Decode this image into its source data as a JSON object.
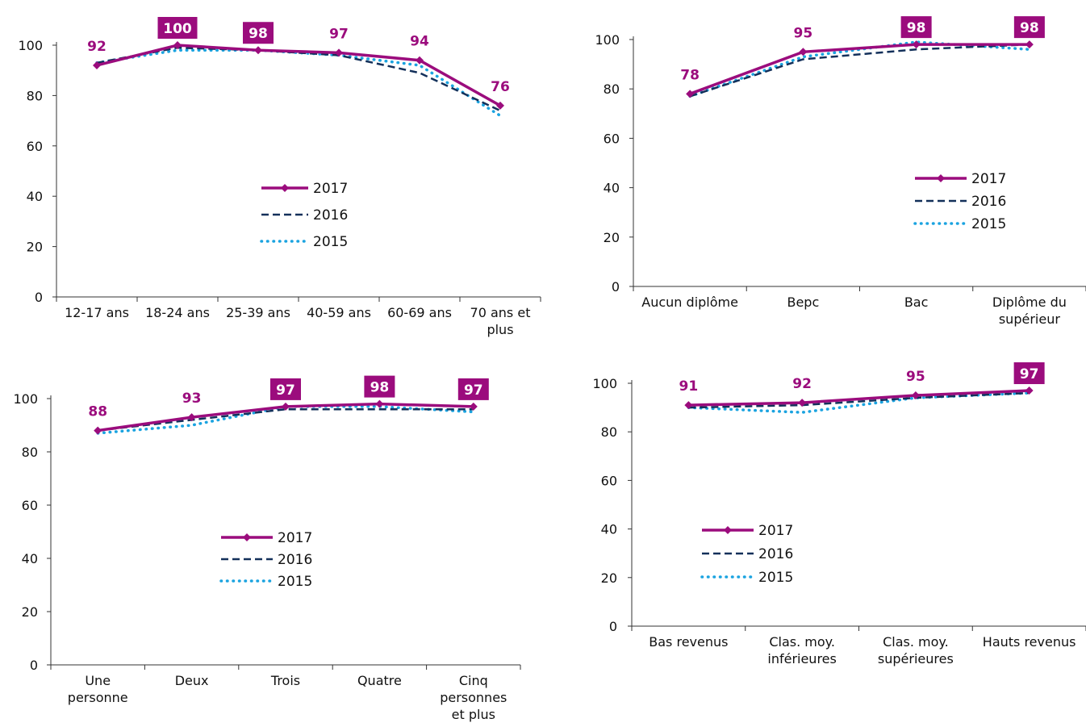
{
  "colors": {
    "s2017": "#9b0c7d",
    "s2016": "#13305a",
    "s2015": "#1aa3e0",
    "label_box": "#9b0c7d",
    "label_box_text": "#ffffff"
  },
  "legend_labels": [
    "2017",
    "2016",
    "2015"
  ],
  "chart_data": [
    {
      "type": "line",
      "categories": [
        [
          "12-17 ans"
        ],
        [
          "18-24 ans"
        ],
        [
          "25-39 ans"
        ],
        [
          "40-59 ans"
        ],
        [
          "60-69 ans"
        ],
        [
          "70 ans et",
          "plus"
        ]
      ],
      "ylim": [
        0,
        100
      ],
      "yticks": [
        0,
        20,
        40,
        60,
        80,
        100
      ],
      "series": [
        {
          "name": "2017",
          "values": [
            92,
            100,
            98,
            97,
            94,
            76
          ]
        },
        {
          "name": "2016",
          "values": [
            93,
            99,
            98,
            96,
            89,
            74
          ]
        },
        {
          "name": "2015",
          "values": [
            93,
            98,
            98,
            96,
            92,
            72
          ]
        }
      ],
      "data_labels": [
        "92",
        "100",
        "98",
        "97",
        "94",
        "76"
      ],
      "boxed": [
        false,
        true,
        true,
        false,
        false,
        false
      ],
      "legend": "center-right"
    },
    {
      "type": "line",
      "categories": [
        [
          "Aucun diplôme"
        ],
        [
          "Bepc"
        ],
        [
          "Bac"
        ],
        [
          "Diplôme du",
          "supérieur"
        ]
      ],
      "ylim": [
        0,
        100
      ],
      "yticks": [
        0,
        20,
        40,
        60,
        80,
        100
      ],
      "series": [
        {
          "name": "2017",
          "values": [
            78,
            95,
            98,
            98
          ]
        },
        {
          "name": "2016",
          "values": [
            77,
            92,
            96,
            98
          ]
        },
        {
          "name": "2015",
          "values": [
            77,
            93,
            99,
            96
          ]
        }
      ],
      "data_labels": [
        "78",
        "95",
        "98",
        "98"
      ],
      "boxed": [
        false,
        false,
        true,
        true
      ],
      "legend": "center-right"
    },
    {
      "type": "line",
      "categories": [
        [
          "Une",
          "personne"
        ],
        [
          "Deux"
        ],
        [
          "Trois"
        ],
        [
          "Quatre"
        ],
        [
          "Cinq",
          "personnes",
          "et plus"
        ]
      ],
      "ylim": [
        0,
        100
      ],
      "yticks": [
        0,
        20,
        40,
        60,
        80,
        100
      ],
      "series": [
        {
          "name": "2017",
          "values": [
            88,
            93,
            97,
            98,
            97
          ]
        },
        {
          "name": "2016",
          "values": [
            88,
            92,
            96,
            96,
            96
          ]
        },
        {
          "name": "2015",
          "values": [
            87,
            90,
            97,
            97,
            95
          ]
        }
      ],
      "data_labels": [
        "88",
        "93",
        "97",
        "98",
        "97"
      ],
      "boxed": [
        false,
        false,
        true,
        true,
        true
      ],
      "legend": "center"
    },
    {
      "type": "line",
      "categories": [
        [
          "Bas revenus"
        ],
        [
          "Clas. moy.",
          "inférieures"
        ],
        [
          "Clas. moy.",
          "supérieures"
        ],
        [
          "Hauts revenus"
        ]
      ],
      "ylim": [
        0,
        100
      ],
      "yticks": [
        0,
        20,
        40,
        60,
        80,
        100
      ],
      "series": [
        {
          "name": "2017",
          "values": [
            91,
            92,
            95,
            97
          ]
        },
        {
          "name": "2016",
          "values": [
            90,
            91,
            94,
            96
          ]
        },
        {
          "name": "2015",
          "values": [
            90,
            88,
            94,
            96
          ]
        }
      ],
      "data_labels": [
        "91",
        "92",
        "95",
        "97"
      ],
      "boxed": [
        false,
        false,
        false,
        true
      ],
      "legend": "center-left"
    }
  ]
}
